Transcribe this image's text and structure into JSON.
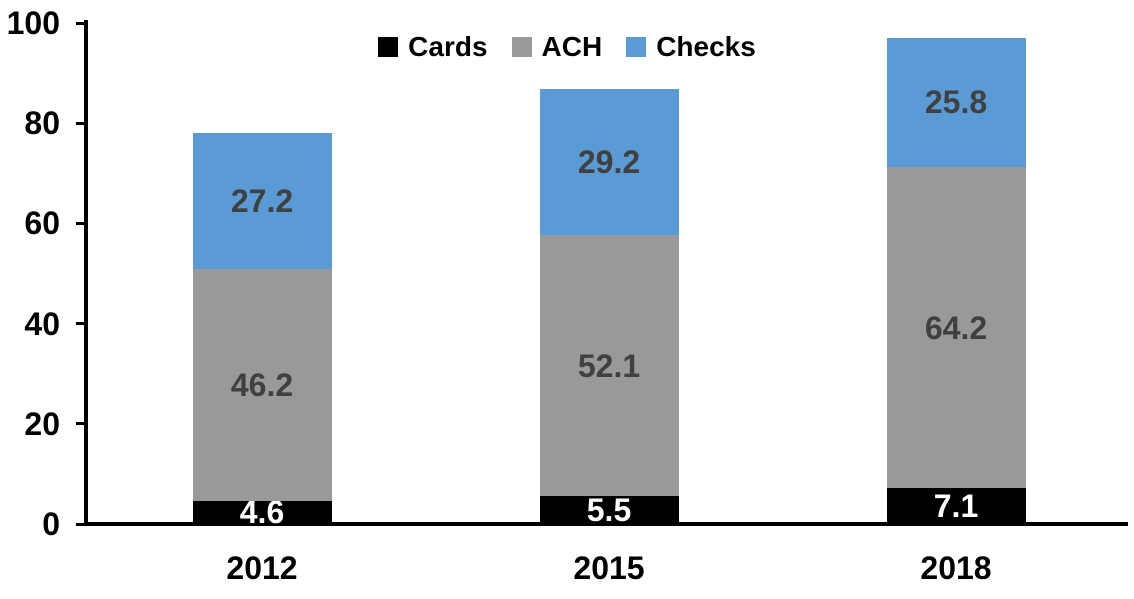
{
  "chart_data": {
    "type": "bar",
    "stacked": true,
    "title": "",
    "xlabel": "",
    "ylabel": "",
    "categories": [
      "2012",
      "2015",
      "2018"
    ],
    "series": [
      {
        "name": "Cards",
        "color": "#000000",
        "label_color": "#ffffff",
        "values": [
          4.6,
          5.5,
          7.1
        ]
      },
      {
        "name": "ACH",
        "color": "#999999",
        "label_color": "#404040",
        "values": [
          46.2,
          52.1,
          64.2
        ]
      },
      {
        "name": "Checks",
        "color": "#5B9BD5",
        "label_color": "#404040",
        "values": [
          27.2,
          29.2,
          25.8
        ]
      }
    ],
    "totals": [
      78.0,
      86.8,
      97.1
    ],
    "ylim": [
      0,
      100
    ],
    "yticks": [
      0,
      20,
      40,
      60,
      80,
      100
    ],
    "grid": false,
    "legend_position": "top-center",
    "axis_color": "#000000",
    "background_color": "#ffffff"
  }
}
